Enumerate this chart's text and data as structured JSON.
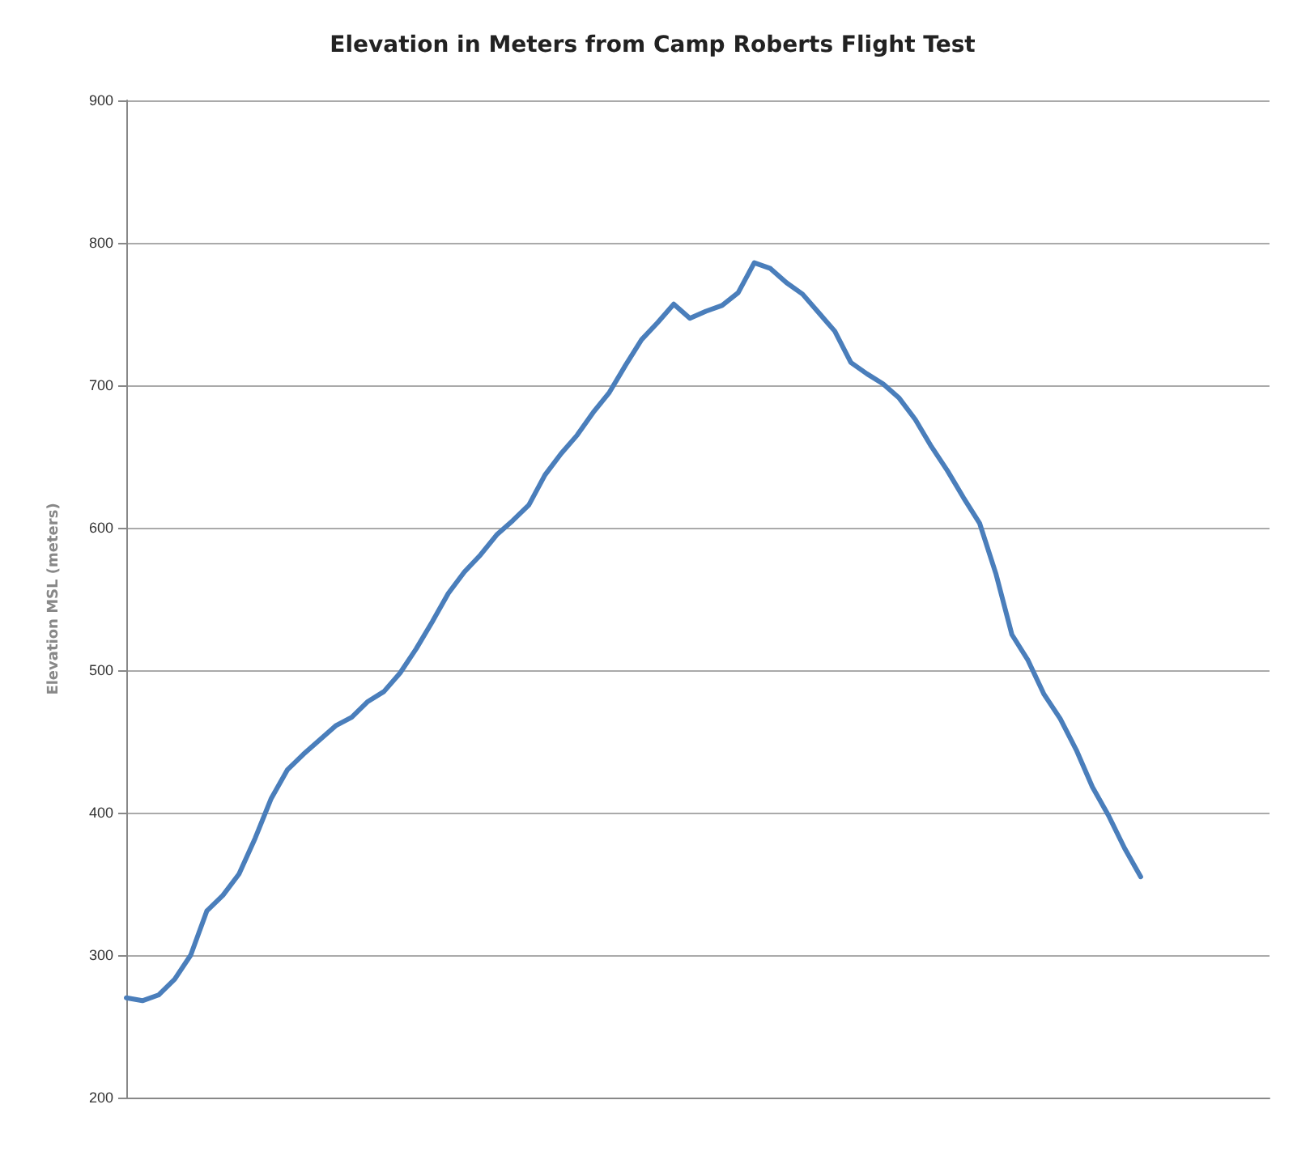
{
  "chart_data": {
    "type": "line",
    "title": "Elevation in Meters from Camp Roberts Flight Test",
    "ylabel": "Elevation MSL (meters)",
    "categories": [
      null,
      null,
      null,
      null,
      null,
      null,
      null,
      null,
      null,
      null,
      null,
      null,
      null,
      null,
      null,
      null,
      null,
      null,
      null,
      null,
      null,
      null,
      null,
      null,
      null,
      null,
      null,
      null,
      null,
      null,
      null,
      null,
      null,
      null,
      null,
      null,
      null,
      null,
      null,
      null,
      null,
      null,
      null,
      null,
      null,
      null,
      null,
      null,
      null,
      null,
      null,
      null,
      null,
      null,
      null,
      null,
      null,
      null,
      null,
      null,
      null,
      null,
      null,
      null,
      null,
      null,
      null,
      null,
      null,
      null,
      null,
      null
    ],
    "series": [
      {
        "color": "#4a7ebb",
        "values": [
          270,
          268,
          272,
          283,
          300,
          331,
          342,
          357,
          382,
          410,
          430,
          441,
          451,
          461,
          467,
          478,
          485,
          498,
          515,
          534,
          554,
          569,
          581,
          595,
          605,
          616,
          637,
          652,
          665,
          681,
          695,
          714,
          732,
          744,
          757,
          747,
          752,
          756,
          765,
          786,
          782,
          772,
          764,
          751,
          738,
          716,
          708,
          701,
          691,
          676,
          657,
          640,
          621,
          603,
          568,
          525,
          507,
          483,
          466,
          444,
          418,
          398,
          375,
          355,
          null,
          null,
          null,
          null,
          null,
          null,
          null,
          null
        ]
      }
    ],
    "ylim": [
      200,
      900
    ],
    "yticks": [
      200,
      300,
      400,
      500,
      600,
      700,
      800,
      900
    ],
    "grid": "y",
    "marker": "none",
    "line_style": "solid"
  }
}
